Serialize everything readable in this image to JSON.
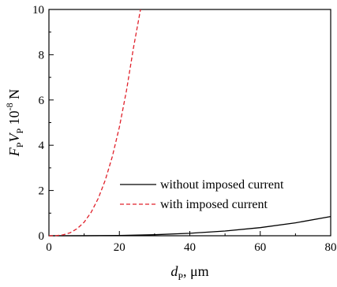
{
  "chart_data": {
    "type": "line",
    "title": "",
    "xlabel": {
      "symbol": "d",
      "subscript": "P",
      "suffix": ", μm"
    },
    "ylabel": {
      "symbol1": "F",
      "sub1": "P",
      "symbol2": "V",
      "sub2": "P",
      "base": " 10",
      "exponent": "-8",
      "unit": " N"
    },
    "xlim": [
      0,
      80
    ],
    "ylim": [
      0,
      10
    ],
    "xticks": [
      0,
      20,
      40,
      60,
      80
    ],
    "yticks": [
      0,
      2,
      4,
      6,
      8,
      10
    ],
    "grid": false,
    "legend_position": "center-right",
    "series": [
      {
        "name": "without imposed current",
        "color": "#000000",
        "dash": "solid",
        "x": [
          0,
          10,
          20,
          30,
          40,
          50,
          60,
          70,
          80
        ],
        "y": [
          0,
          0.002,
          0.013,
          0.045,
          0.11,
          0.21,
          0.36,
          0.57,
          0.85
        ]
      },
      {
        "name": "with imposed current",
        "color": "#e0202a",
        "dash": "dashed",
        "x": [
          0,
          2,
          4,
          6,
          8,
          10,
          12,
          14,
          16,
          18,
          20,
          22,
          24,
          26
        ],
        "y": [
          0,
          0.005,
          0.04,
          0.13,
          0.31,
          0.6,
          1.04,
          1.65,
          2.46,
          3.5,
          4.8,
          6.4,
          8.3,
          10.0
        ]
      }
    ]
  }
}
